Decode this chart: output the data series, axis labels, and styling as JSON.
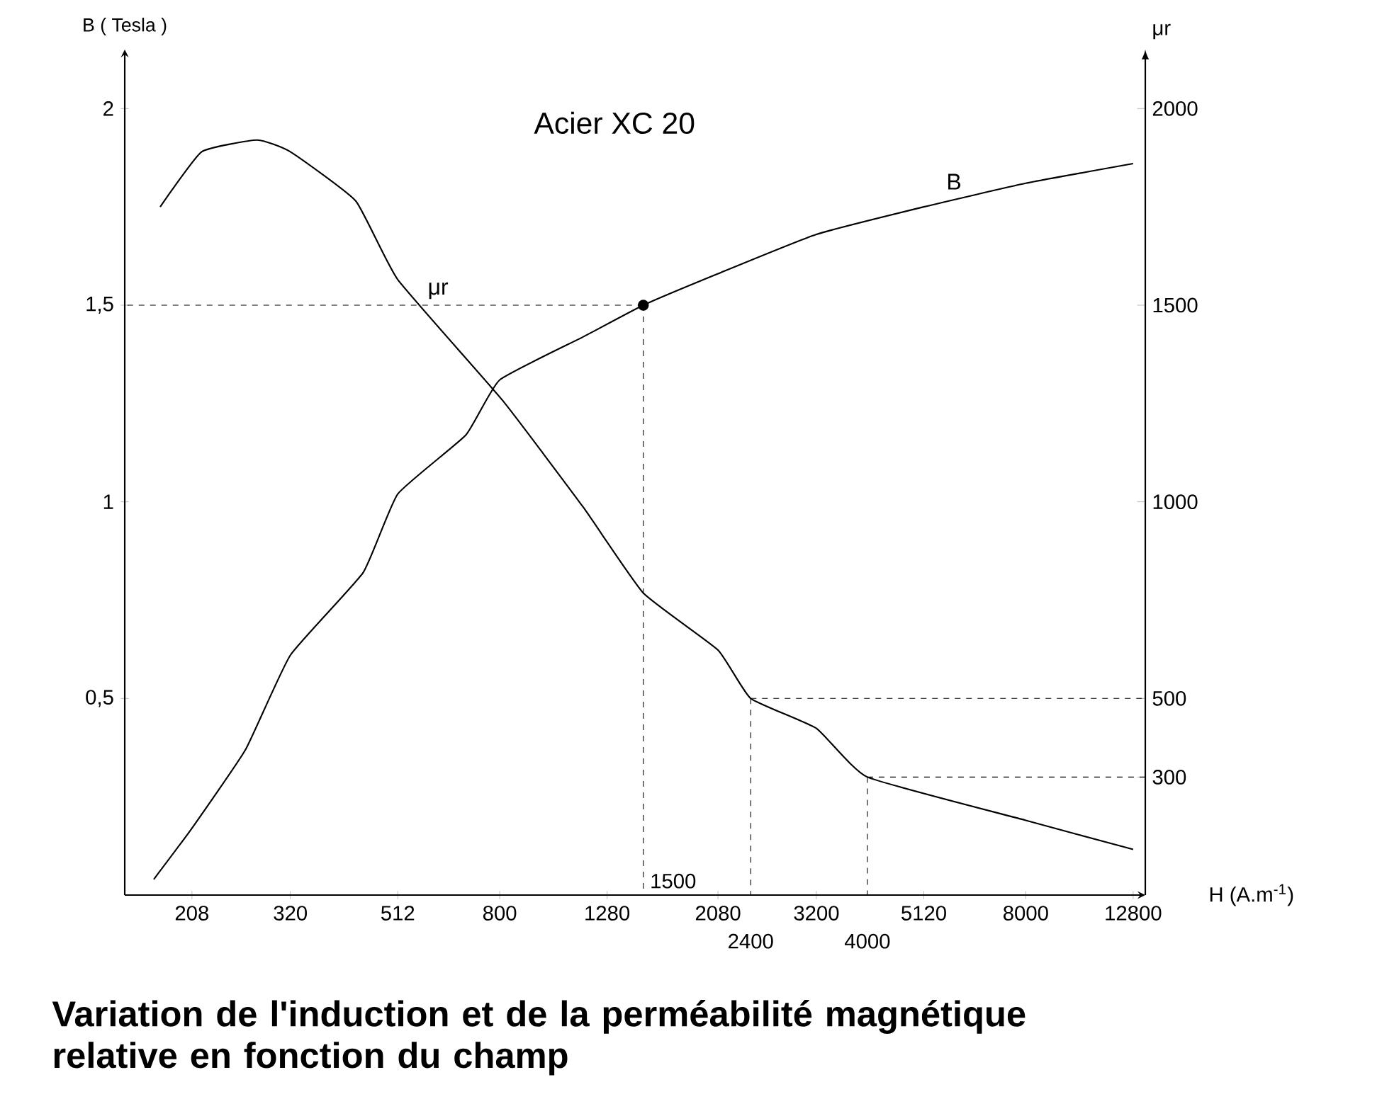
{
  "chart_data": {
    "type": "line",
    "title": "Acier XC 20",
    "xlabel": "H (A.m$^{-1}$)",
    "ylabel": "B ( Tesla )",
    "y2label": "μr",
    "log": "x",
    "xlim": [
      155,
      13500
    ],
    "xticks": [
      208,
      320,
      512,
      800,
      1280,
      2080,
      3200,
      5120,
      8000,
      12800
    ],
    "ylim": [
      0,
      2.15
    ],
    "yticks": [
      {
        "value": 0.5,
        "label": "0,5"
      },
      1,
      {
        "value": 1.5,
        "label": "1,5"
      },
      2
    ],
    "y2lim": [
      0,
      2150
    ],
    "y2ticks": [
      300,
      500,
      1000,
      1500,
      2000
    ],
    "line_style": "solid",
    "series": [
      {
        "name": "B",
        "color": "#000000",
        "x": [
          176,
          208,
          263,
          320,
          440,
          512,
          690,
          800,
          1155,
          1500,
          2080,
          3200,
          5120,
          8000,
          12800
        ],
        "values": [
          0.04,
          0.17,
          0.37,
          0.61,
          0.82,
          1.02,
          1.17,
          1.31,
          1.42,
          1.5,
          1.58,
          1.68,
          1.75,
          1.81,
          1.86
        ]
      },
      {
        "name": "μr",
        "color": "#000000",
        "axis": "y2",
        "x": [
          181,
          217,
          277,
          320,
          426,
          512,
          811,
          1155,
          1500,
          2080,
          2400,
          3200,
          4000,
          8000,
          12800
        ],
        "values": [
          1750,
          1890,
          1920,
          1890,
          1765,
          1565,
          1257,
          985,
          768,
          623,
          500,
          424,
          300,
          190,
          116
        ]
      },
      {
        "type": "scatter",
        "color": "#000000",
        "x": [
          1500
        ],
        "values": [
          1.5
        ]
      }
    ],
    "ref_lines": [
      {
        "axis": "x",
        "value": 1500,
        "label": "1500",
        "line_style": "dashed"
      },
      {
        "axis": "y",
        "value": 1.5,
        "line_style": "dashed"
      },
      {
        "axis": "x",
        "value": 2400,
        "label": "2400",
        "line_style": "dashed"
      },
      {
        "axis": "x",
        "value": 4000,
        "label": "4000",
        "line_style": "dashed"
      },
      {
        "axis": "y2",
        "value": 500,
        "line_style": "dashed"
      },
      {
        "axis": "y2",
        "value": 300,
        "line_style": "dashed"
      }
    ],
    "annotations": [
      "Variation de l'induction et de la perméabilité magnétique relative en fonction du champ"
    ]
  }
}
